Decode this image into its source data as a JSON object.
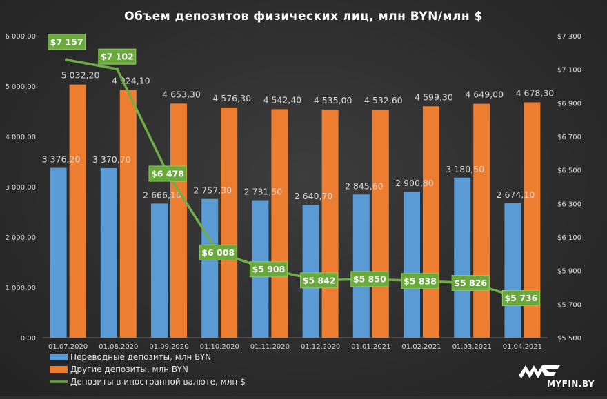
{
  "chart_data": {
    "type": "bar",
    "title": "Объем депозитов  физических  лиц, млн BYN/млн  $",
    "categories": [
      "01.07.2020",
      "01.08.2020",
      "01.09.2020",
      "01.10.2020",
      "01.11.2020",
      "01.12.2020",
      "01.01.2021",
      "01.02.2021",
      "01.03.2021",
      "01.04.2021"
    ],
    "y_left": {
      "ylim": [
        0,
        6000
      ],
      "ticks": [
        "0,00",
        "1 000,00",
        "2 000,00",
        "3 000,00",
        "4 000,00",
        "5 000,00",
        "6 000,00"
      ]
    },
    "y_right": {
      "ylim": [
        5500,
        7300
      ],
      "ticks": [
        "$5 500",
        "$5 700",
        "$5 900",
        "$6 100",
        "$6 300",
        "$6 500",
        "$6 700",
        "$6 900",
        "$7 100",
        "$7 300"
      ]
    },
    "series": [
      {
        "name": "Переводные депозиты, млн BYN",
        "type": "bar",
        "axis": "left",
        "color": "#5b9bd5",
        "values": [
          3376.2,
          3370.7,
          2666.1,
          2757.3,
          2731.5,
          2640.7,
          2845.6,
          2900.8,
          3180.5,
          2674.1
        ],
        "labels": [
          "3 376,20",
          "3 370,70",
          "2 666,10",
          "2 757,30",
          "2 731,50",
          "2 640,70",
          "2 845,60",
          "2 900,80",
          "3 180,50",
          "2 674,10"
        ]
      },
      {
        "name": "Другие депозиты, млн BYN",
        "type": "bar",
        "axis": "left",
        "color": "#ed7d31",
        "values": [
          5032.2,
          4924.1,
          4653.3,
          4576.3,
          4542.4,
          4535.0,
          4532.6,
          4599.3,
          4649.0,
          4678.3
        ],
        "labels": [
          "5 032,20",
          "4 924,10",
          "4 653,30",
          "4 576,30",
          "4 542,40",
          "4 535,00",
          "4 532,60",
          "4 599,30",
          "4 649,00",
          "4 678,30"
        ]
      },
      {
        "name": "Депозиты в иностранной валюте, млн $",
        "type": "line",
        "axis": "right",
        "color": "#70ad47",
        "values": [
          7157,
          7102,
          6478,
          6008,
          5908,
          5842,
          5850,
          5838,
          5826,
          5736
        ],
        "labels": [
          "$7 157",
          "$7 102",
          "$6 478",
          "$6 008",
          "$5 908",
          "$5 842",
          "$5 850",
          "$5 838",
          "$5 826",
          "$5 736"
        ]
      }
    ],
    "grid": false,
    "legend": "bottom-left"
  },
  "logo": {
    "text": "MYFIN.BY"
  }
}
